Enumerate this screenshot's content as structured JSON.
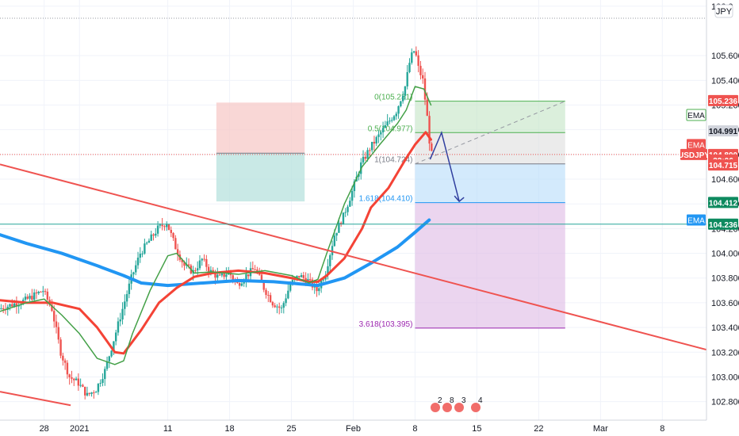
{
  "chart_data": {
    "type": "candlestick",
    "symbol": "USDJPY",
    "currency": "JPY",
    "y_axis": {
      "ticks": [
        106.0,
        105.6,
        105.4,
        105.2,
        105.0,
        104.8,
        104.6,
        104.4,
        104.2,
        104.0,
        103.8,
        103.6,
        103.4,
        103.2,
        103.0,
        102.8
      ],
      "tick_labels": [
        "106.0",
        "105.600",
        "105.400",
        "105.200",
        "105.000",
        "104.800",
        "104.600",
        "104.400",
        "104.200",
        "104.000",
        "103.800",
        "103.600",
        "103.400",
        "103.200",
        "103.000",
        "102.800"
      ],
      "ylim": [
        102.65,
        106.05
      ]
    },
    "x_axis": {
      "tick_labels": [
        "28",
        "2021",
        "11",
        "18",
        "25",
        "Feb",
        "8",
        "15",
        "22",
        "Mar",
        "8"
      ],
      "tick_days": [
        -4,
        0,
        10,
        17,
        24,
        31,
        38,
        45,
        52,
        59,
        66
      ],
      "xlim": [
        -9,
        71
      ]
    },
    "price_badges": [
      {
        "label": "105.236",
        "value": 105.236,
        "color": "#ef5350"
      },
      {
        "label": "104.991",
        "value": 104.991,
        "color": "#d1d4dc"
      },
      {
        "label": "USDJPY",
        "value": 104.8,
        "color": "#ef5350"
      },
      {
        "label": "104.800",
        "value": 104.8,
        "color": "#ef5350"
      },
      {
        "label": "32:06",
        "value": 104.755,
        "color": "#ef5350"
      },
      {
        "label": "104.715",
        "value": 104.715,
        "color": "#ef5350"
      },
      {
        "label": "104.412",
        "value": 104.412,
        "color": "#0e8a5f"
      },
      {
        "label": "104.236",
        "value": 104.236,
        "color": "#0e8a5f"
      }
    ],
    "ema_tags": [
      {
        "label": "EMA",
        "value": 105.12,
        "color": "#4caf50",
        "style": "outline"
      },
      {
        "label": "EMA",
        "value": 104.88,
        "color": "#ef5350",
        "style": "solid"
      },
      {
        "label": "EMA",
        "value": 104.27,
        "color": "#2196f3",
        "style": "solid"
      }
    ],
    "fib_levels": [
      {
        "label": "0(105.231)",
        "ratio": 0,
        "value": 105.231,
        "color": "#4caf50"
      },
      {
        "label": "0.5(104.977)",
        "ratio": 0.5,
        "value": 104.977,
        "color": "#4caf50"
      },
      {
        "label": "1(104.724)",
        "ratio": 1,
        "value": 104.724,
        "color": "#787b86"
      },
      {
        "label": "1.618(104.410)",
        "ratio": 1.618,
        "value": 104.41,
        "color": "#2196f3"
      },
      {
        "label": "3.618(103.395)",
        "ratio": 3.618,
        "value": 103.395,
        "color": "#9c27b0"
      }
    ],
    "series": [
      {
        "type": "ema",
        "color": "#2196f3",
        "points": [
          [
            -9,
            104.15
          ],
          [
            -6,
            104.08
          ],
          [
            -2,
            104.0
          ],
          [
            2,
            103.9
          ],
          [
            5,
            103.82
          ],
          [
            7,
            103.76
          ],
          [
            10,
            103.74
          ],
          [
            14,
            103.76
          ],
          [
            18,
            103.78
          ],
          [
            22,
            103.77
          ],
          [
            27,
            103.74
          ],
          [
            30,
            103.8
          ],
          [
            33,
            103.92
          ],
          [
            36,
            104.05
          ],
          [
            38,
            104.17
          ],
          [
            39.6,
            104.27
          ]
        ]
      },
      {
        "type": "ema",
        "color": "#f44336",
        "points": [
          [
            -9,
            103.62
          ],
          [
            -6,
            103.6
          ],
          [
            -3,
            103.6
          ],
          [
            0,
            103.55
          ],
          [
            2,
            103.4
          ],
          [
            3,
            103.3
          ],
          [
            4,
            103.2
          ],
          [
            5,
            103.19
          ],
          [
            7,
            103.38
          ],
          [
            9,
            103.6
          ],
          [
            11,
            103.72
          ],
          [
            13,
            103.81
          ],
          [
            15,
            103.84
          ],
          [
            18,
            103.86
          ],
          [
            21,
            103.84
          ],
          [
            24,
            103.8
          ],
          [
            26,
            103.77
          ],
          [
            27,
            103.77
          ],
          [
            28,
            103.82
          ],
          [
            30,
            103.96
          ],
          [
            32,
            104.2
          ],
          [
            33,
            104.37
          ],
          [
            35,
            104.53
          ],
          [
            36,
            104.65
          ],
          [
            37,
            104.77
          ],
          [
            38,
            104.88
          ],
          [
            39.2,
            104.98
          ],
          [
            39.8,
            104.92
          ]
        ]
      },
      {
        "type": "ema",
        "color": "#43a047",
        "points": [
          [
            -9,
            103.53
          ],
          [
            -6,
            103.6
          ],
          [
            -4,
            103.63
          ],
          [
            -2,
            103.5
          ],
          [
            0,
            103.35
          ],
          [
            2,
            103.15
          ],
          [
            4,
            103.1
          ],
          [
            5,
            103.13
          ],
          [
            6,
            103.35
          ],
          [
            8,
            103.7
          ],
          [
            10,
            103.98
          ],
          [
            11,
            104.0
          ],
          [
            13,
            103.84
          ],
          [
            15,
            103.85
          ],
          [
            18,
            103.83
          ],
          [
            21,
            103.86
          ],
          [
            24,
            103.82
          ],
          [
            26,
            103.76
          ],
          [
            27,
            103.79
          ],
          [
            28,
            104.0
          ],
          [
            30,
            104.4
          ],
          [
            32,
            104.7
          ],
          [
            34,
            104.88
          ],
          [
            36,
            105.05
          ],
          [
            37,
            105.16
          ],
          [
            38,
            105.35
          ],
          [
            39,
            105.33
          ],
          [
            39.8,
            105.2
          ]
        ]
      },
      {
        "type": "trendline",
        "color": "#ef5350",
        "points": [
          [
            -9,
            104.72
          ],
          [
            71,
            103.22
          ]
        ]
      },
      {
        "type": "trendline",
        "color": "#ef5350",
        "points": [
          [
            -9,
            102.88
          ],
          [
            -1,
            102.77
          ]
        ]
      },
      {
        "type": "horizontal",
        "color": "#26a69a",
        "value": 104.236
      },
      {
        "type": "dashed",
        "color": "#9598a1",
        "points": [
          [
            38,
            104.724
          ],
          [
            55,
            105.231
          ]
        ]
      },
      {
        "type": "arrow",
        "color": "#303f9f",
        "points": [
          [
            39.7,
            104.76
          ],
          [
            41,
            104.977
          ],
          [
            43,
            104.42
          ]
        ]
      }
    ],
    "zones": [
      {
        "type": "short_position",
        "x": [
          15.5,
          25.5
        ],
        "stop": [
          104.81,
          105.22
        ],
        "target": [
          104.42,
          104.81
        ]
      }
    ]
  }
}
